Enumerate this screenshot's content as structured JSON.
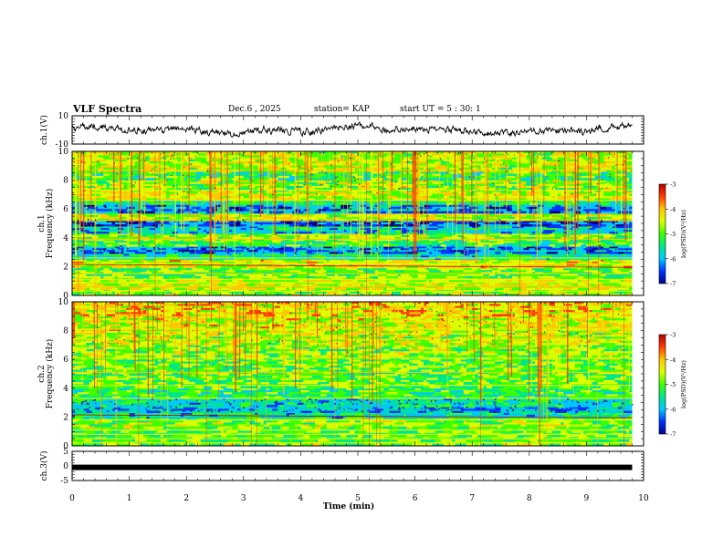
{
  "header": {
    "title": "VLF Spectra",
    "date": "Dec.6 , 2025",
    "station": "station= KAP",
    "start_ut": "start UT = 5 : 30: 1"
  },
  "colors": {
    "line": "#000000",
    "colormap": [
      "#00008c",
      "#0033ff",
      "#00c8ff",
      "#00e68c",
      "#3cff00",
      "#dcff00",
      "#ffc800",
      "#ff3c00",
      "#b40000"
    ]
  },
  "chart_data": [
    {
      "type": "line",
      "name": "ch1-waveform",
      "ylabel": "ch.1(V)",
      "ylim": [
        -10,
        10
      ],
      "y_ticks": [
        "10",
        "-10"
      ],
      "xlim": [
        0,
        10
      ],
      "x_end": 9.8,
      "description_of_series": "broadband voltage waveform, amplitude roughly between -6 and 6 V"
    },
    {
      "type": "heatmap",
      "name": "ch1-spectrogram",
      "ylabel": "ch.1",
      "ylabel2": "Frequency (kHz)",
      "ylim": [
        0,
        10
      ],
      "y_ticks": [
        "0",
        "2",
        "4",
        "6",
        "8",
        "10"
      ],
      "xlim": [
        0,
        10
      ],
      "x_end": 9.8,
      "colorbar": {
        "label": "log(PSD)(V²/Hz)",
        "range": [
          -7,
          -3
        ],
        "ticks": [
          "-3",
          "-4",
          "-5",
          "-6",
          "-7"
        ]
      }
    },
    {
      "type": "heatmap",
      "name": "ch2-spectrogram",
      "ylabel": "ch.2",
      "ylabel2": "Frequency (kHz)",
      "ylim": [
        0,
        10
      ],
      "y_ticks": [
        "0",
        "2",
        "4",
        "6",
        "8",
        "10"
      ],
      "xlim": [
        0,
        10
      ],
      "x_end": 9.8,
      "colorbar": {
        "label": "log(PSD)(V²/Hz)",
        "range": [
          -7,
          -3
        ],
        "ticks": [
          "-3",
          "-4",
          "-5",
          "-6",
          "-7"
        ]
      }
    },
    {
      "type": "line",
      "name": "ch3-waveform",
      "ylabel": "ch.3(V)",
      "ylim": [
        -5,
        5
      ],
      "y_ticks": [
        "5",
        "0",
        "-5"
      ],
      "xlim": [
        0,
        10
      ],
      "x_end": 9.8,
      "xlabel": "Time (min)",
      "x_ticks": [
        "0",
        "1",
        "2",
        "3",
        "4",
        "5",
        "6",
        "7",
        "8",
        "9",
        "10"
      ],
      "level": -0.5
    }
  ]
}
